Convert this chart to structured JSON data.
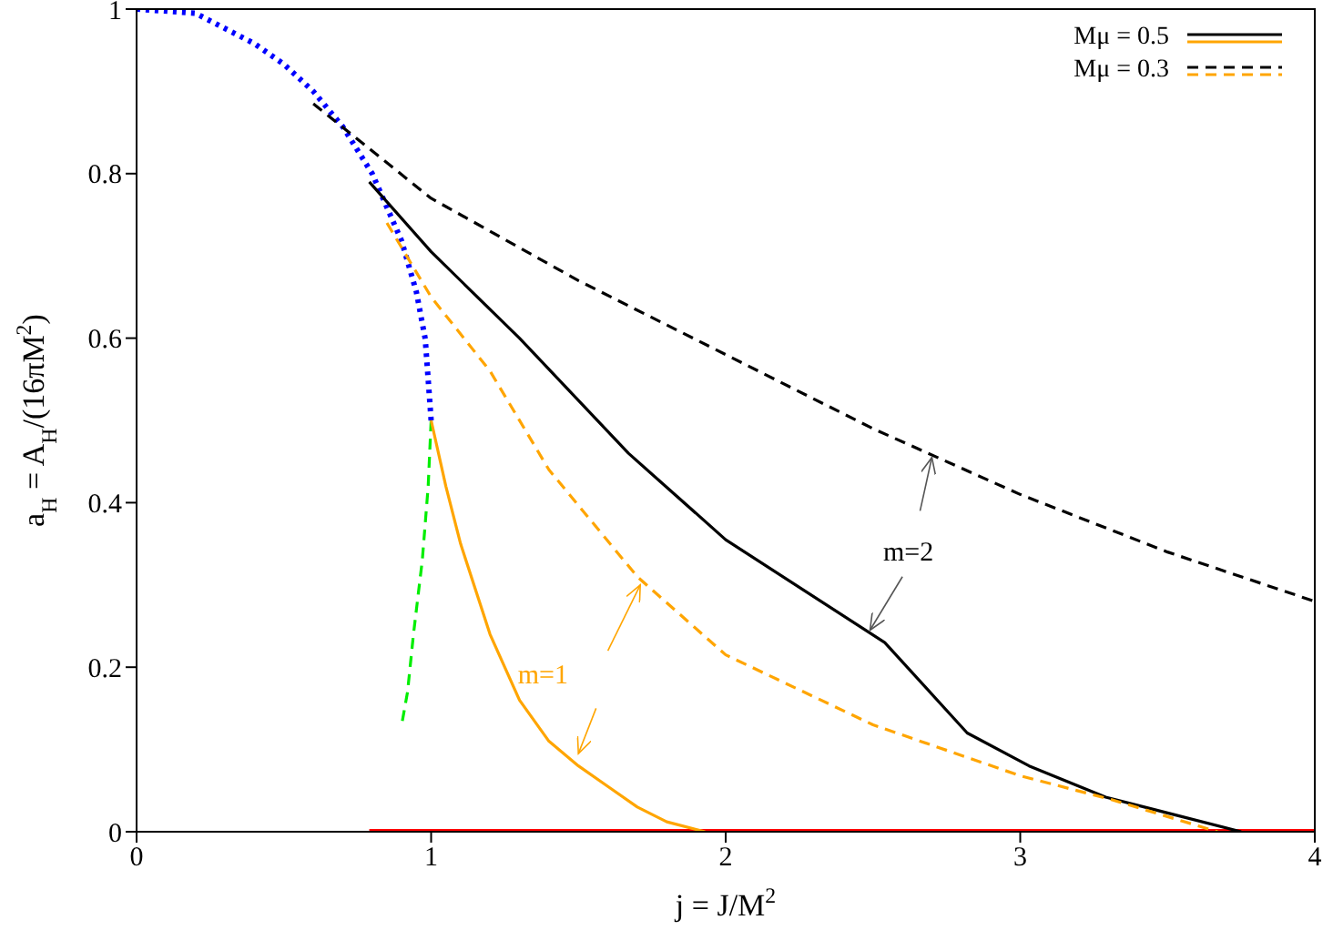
{
  "chart_data": {
    "type": "line",
    "xlabel": "j = J/M$^{2}$",
    "ylabel": "a$_{H}$ = A$_{H}$/(16πM$^{2}$)",
    "xlim": [
      0,
      4
    ],
    "xticks": [
      0,
      1,
      2,
      3,
      4
    ],
    "ylim": [
      0,
      1
    ],
    "yticks": [
      0,
      0.2,
      0.4,
      0.6,
      0.8,
      1
    ],
    "grid": false,
    "legend": "top right",
    "marker": "none",
    "annotations": [
      "m=2",
      "m=1"
    ],
    "series": [
      {
        "color": "#0000ff",
        "line_style": "dotted",
        "x": [
          0,
          0.2,
          0.4,
          0.5,
          0.6,
          0.7,
          0.8,
          0.9,
          0.95,
          0.98,
          1
        ],
        "values": [
          1,
          0.995,
          0.958,
          0.933,
          0.9,
          0.857,
          0.8,
          0.718,
          0.656,
          0.599,
          0.5
        ]
      },
      {
        "color": "#00ee00",
        "line_style": "dashed",
        "x": [
          1,
          0.99,
          0.97,
          0.94,
          0.92,
          0.9
        ],
        "values": [
          0.5,
          0.42,
          0.33,
          0.24,
          0.17,
          0.13
        ]
      },
      {
        "color": "#ff0000",
        "line_style": "solid",
        "x": [
          0.79,
          4
        ],
        "values": [
          0,
          0
        ]
      },
      {
        "name": "Mμ = 0.5",
        "color": "#000000",
        "line_style": "solid",
        "x": [
          0.79,
          1,
          1.3,
          1.67,
          2,
          2.54,
          2.82,
          3.03,
          3.29,
          3.75
        ],
        "values": [
          0.79,
          0.705,
          0.6,
          0.46,
          0.355,
          0.23,
          0.12,
          0.08,
          0.042,
          0
        ]
      },
      {
        "color": "#ffa500",
        "line_style": "solid",
        "x": [
          1,
          1.05,
          1.1,
          1.2,
          1.3,
          1.4,
          1.5,
          1.6,
          1.7,
          1.8,
          1.93
        ],
        "values": [
          0.5,
          0.42,
          0.35,
          0.24,
          0.16,
          0.11,
          0.08,
          0.055,
          0.03,
          0.012,
          0
        ]
      },
      {
        "name": "Mμ = 0.3",
        "color": "#000000",
        "line_style": "dashed",
        "x": [
          0.6,
          1,
          1.5,
          2,
          2.5,
          3,
          3.5,
          4
        ],
        "values": [
          0.885,
          0.77,
          0.67,
          0.58,
          0.49,
          0.41,
          0.34,
          0.28
        ]
      },
      {
        "color": "#ffa500",
        "line_style": "dashed",
        "x": [
          0.85,
          1,
          1.2,
          1.4,
          1.7,
          2,
          2.5,
          3,
          3.3,
          3.67
        ],
        "values": [
          0.74,
          0.65,
          0.56,
          0.44,
          0.31,
          0.215,
          0.13,
          0.068,
          0.04,
          0
        ]
      }
    ]
  }
}
